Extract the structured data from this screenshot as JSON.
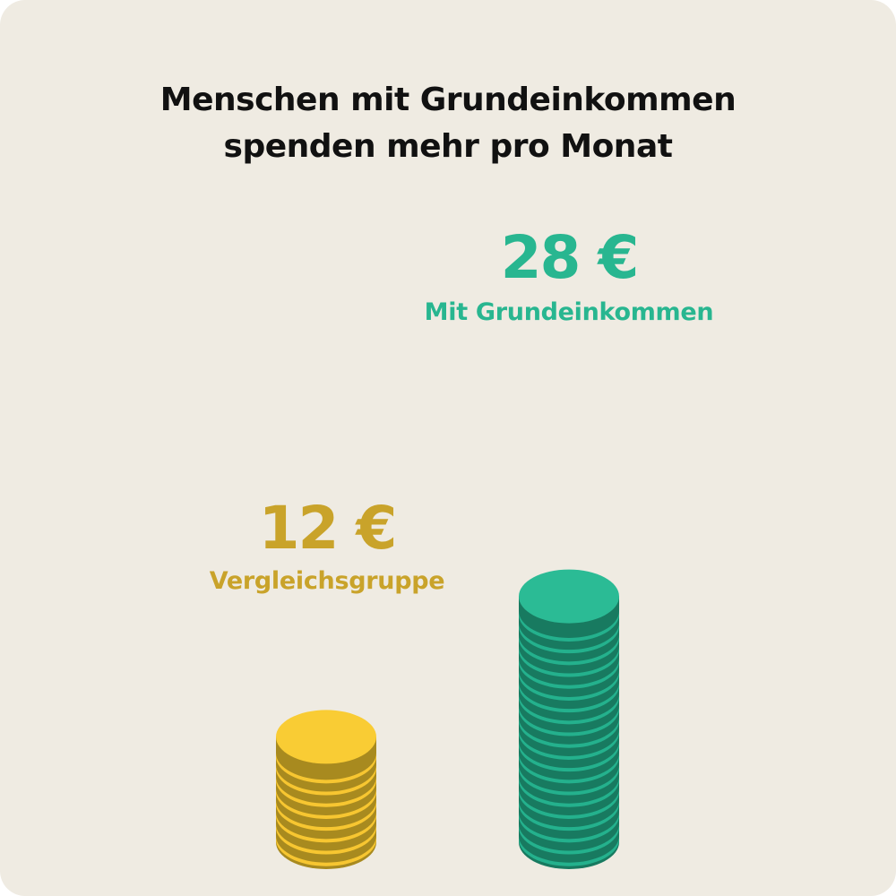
{
  "chart_data": {
    "type": "bar",
    "title_lines": [
      "Menschen mit Grundeinkommen",
      "spenden mehr pro Monat"
    ],
    "series": [
      {
        "name": "Vergleichsgruppe",
        "value": 12,
        "value_label": "12 €",
        "color": "#f7c631",
        "edge_color": "#a88a1f",
        "top_color": "#f9cc34"
      },
      {
        "name": "Mit Grundeinkommen",
        "value": 28,
        "value_label": "28 €",
        "color": "#24b18d",
        "edge_color": "#187a60",
        "top_color": "#2bbb95"
      }
    ],
    "label_colors": [
      "#c9a32a",
      "#28b690"
    ]
  }
}
